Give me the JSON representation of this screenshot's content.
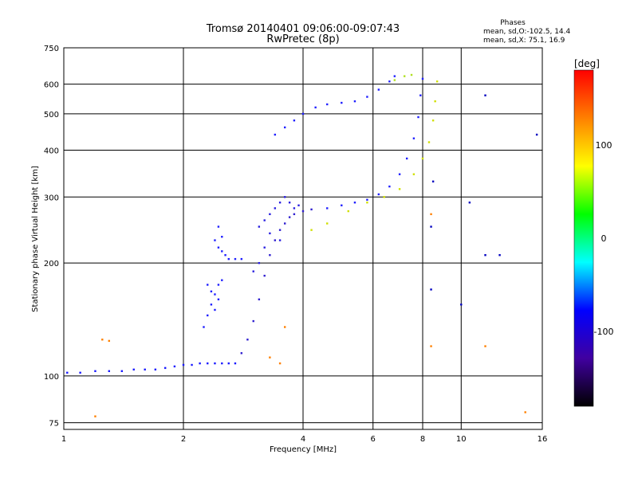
{
  "chart_data": {
    "type": "scatter",
    "title": "Tromsø 20140401 09:06:00-09:07:43",
    "subtitle": "RwPretec (8p)",
    "xlabel": "Frequency [MHz]",
    "ylabel": "Stationary phase Virtual Height [km]",
    "x_scale": "log",
    "y_scale": "log",
    "xlim": [
      1,
      16
    ],
    "ylim": [
      72,
      750
    ],
    "x_ticks": [
      1,
      2,
      4,
      6,
      8,
      10,
      16
    ],
    "y_ticks": [
      75,
      100,
      200,
      300,
      400,
      500,
      600,
      750
    ],
    "grid": true,
    "phases_box": {
      "heading": "Phases",
      "line1": "mean, sd,O:-102.5, 14.4",
      "line2": "mean, sd,X:  75.1, 16.9"
    },
    "colorbar": {
      "label": "[deg]",
      "range": [
        -180,
        180
      ],
      "ticks": [
        100,
        0,
        -100
      ],
      "colors": [
        "#ff0000",
        "#ff8000",
        "#ffff00",
        "#00ff00",
        "#00ffff",
        "#0000ff",
        "#4000a0",
        "#000000"
      ]
    },
    "series": [
      {
        "id": "o_low",
        "color": "#1a1aff",
        "points": [
          [
            1.02,
            102
          ],
          [
            1.1,
            102
          ],
          [
            1.2,
            103
          ],
          [
            1.3,
            103
          ],
          [
            1.4,
            103
          ],
          [
            1.5,
            104
          ],
          [
            1.6,
            104
          ],
          [
            1.7,
            104
          ],
          [
            1.8,
            105
          ],
          [
            1.9,
            106
          ],
          [
            2.0,
            107
          ],
          [
            2.1,
            107
          ],
          [
            2.2,
            108
          ],
          [
            2.3,
            108
          ],
          [
            2.4,
            108
          ],
          [
            2.5,
            108
          ],
          [
            2.6,
            108
          ],
          [
            2.7,
            108
          ]
        ]
      },
      {
        "id": "o_blob2",
        "color": "#2020ff",
        "points": [
          [
            2.25,
            135
          ],
          [
            2.3,
            145
          ],
          [
            2.35,
            155
          ],
          [
            2.4,
            165
          ],
          [
            2.45,
            175
          ],
          [
            2.5,
            180
          ],
          [
            2.3,
            175
          ],
          [
            2.35,
            168
          ],
          [
            2.4,
            150
          ],
          [
            2.45,
            160
          ]
        ]
      },
      {
        "id": "o_blob2b",
        "color": "#2020ff",
        "points": [
          [
            2.4,
            230
          ],
          [
            2.45,
            220
          ],
          [
            2.5,
            215
          ],
          [
            2.55,
            210
          ],
          [
            2.6,
            205
          ],
          [
            2.7,
            205
          ],
          [
            2.8,
            205
          ],
          [
            2.5,
            235
          ],
          [
            2.45,
            250
          ]
        ]
      },
      {
        "id": "o_rise3",
        "color": "#3020d0",
        "points": [
          [
            2.8,
            115
          ],
          [
            2.9,
            125
          ],
          [
            3.0,
            140
          ],
          [
            3.1,
            160
          ],
          [
            3.2,
            185
          ],
          [
            3.3,
            210
          ],
          [
            3.4,
            230
          ],
          [
            3.5,
            245
          ],
          [
            3.6,
            255
          ],
          [
            3.7,
            265
          ],
          [
            3.8,
            270
          ],
          [
            4.0,
            275
          ],
          [
            4.2,
            278
          ]
        ]
      },
      {
        "id": "o_cloud",
        "color": "#2a20e0",
        "points": [
          [
            3.1,
            250
          ],
          [
            3.2,
            260
          ],
          [
            3.3,
            270
          ],
          [
            3.4,
            280
          ],
          [
            3.5,
            290
          ],
          [
            3.6,
            300
          ],
          [
            3.7,
            290
          ],
          [
            3.8,
            280
          ],
          [
            3.9,
            285
          ],
          [
            3.3,
            240
          ],
          [
            3.5,
            230
          ],
          [
            3.1,
            200
          ],
          [
            3.2,
            220
          ],
          [
            3.0,
            190
          ]
        ]
      },
      {
        "id": "o_f2",
        "color": "#2020ff",
        "points": [
          [
            4.6,
            280
          ],
          [
            5.0,
            285
          ],
          [
            5.4,
            290
          ],
          [
            5.8,
            295
          ],
          [
            6.2,
            305
          ],
          [
            6.6,
            320
          ],
          [
            7.0,
            345
          ],
          [
            7.3,
            380
          ],
          [
            7.6,
            430
          ],
          [
            7.8,
            490
          ],
          [
            7.9,
            560
          ],
          [
            8.0,
            620
          ]
        ]
      },
      {
        "id": "o_upper",
        "color": "#2020ff",
        "points": [
          [
            3.4,
            440
          ],
          [
            3.6,
            460
          ],
          [
            3.8,
            480
          ],
          [
            4.0,
            500
          ],
          [
            4.3,
            520
          ],
          [
            4.6,
            530
          ],
          [
            5.0,
            535
          ],
          [
            5.4,
            540
          ],
          [
            5.8,
            555
          ],
          [
            6.2,
            580
          ],
          [
            6.6,
            610
          ],
          [
            6.8,
            630
          ]
        ]
      },
      {
        "id": "x_f2",
        "color": "#d0e000",
        "points": [
          [
            4.2,
            245
          ],
          [
            4.6,
            255
          ],
          [
            5.2,
            275
          ],
          [
            5.8,
            290
          ],
          [
            6.4,
            300
          ],
          [
            7.0,
            315
          ],
          [
            7.6,
            345
          ],
          [
            8.0,
            380
          ],
          [
            8.3,
            420
          ],
          [
            8.5,
            480
          ],
          [
            8.6,
            540
          ],
          [
            8.7,
            610
          ]
        ]
      },
      {
        "id": "x_upper",
        "color": "#b0e020",
        "points": [
          [
            6.8,
            615
          ],
          [
            7.2,
            630
          ],
          [
            7.5,
            635
          ]
        ]
      },
      {
        "id": "scatter_misc",
        "color": "#ff8000",
        "points": [
          [
            1.25,
            125
          ],
          [
            1.3,
            124
          ],
          [
            1.2,
            78
          ],
          [
            3.3,
            112
          ],
          [
            3.5,
            108
          ],
          [
            3.6,
            135
          ],
          [
            8.4,
            270
          ],
          [
            8.4,
            120
          ],
          [
            11.5,
            120
          ],
          [
            14.5,
            80
          ]
        ]
      },
      {
        "id": "scatter_blue",
        "color": "#0000c0",
        "points": [
          [
            11.5,
            560
          ],
          [
            15.5,
            440
          ],
          [
            12.5,
            210
          ],
          [
            10.5,
            290
          ],
          [
            8.5,
            330
          ],
          [
            8.4,
            250
          ],
          [
            8.4,
            170
          ],
          [
            10,
            155
          ],
          [
            11.5,
            210
          ]
        ]
      }
    ]
  }
}
